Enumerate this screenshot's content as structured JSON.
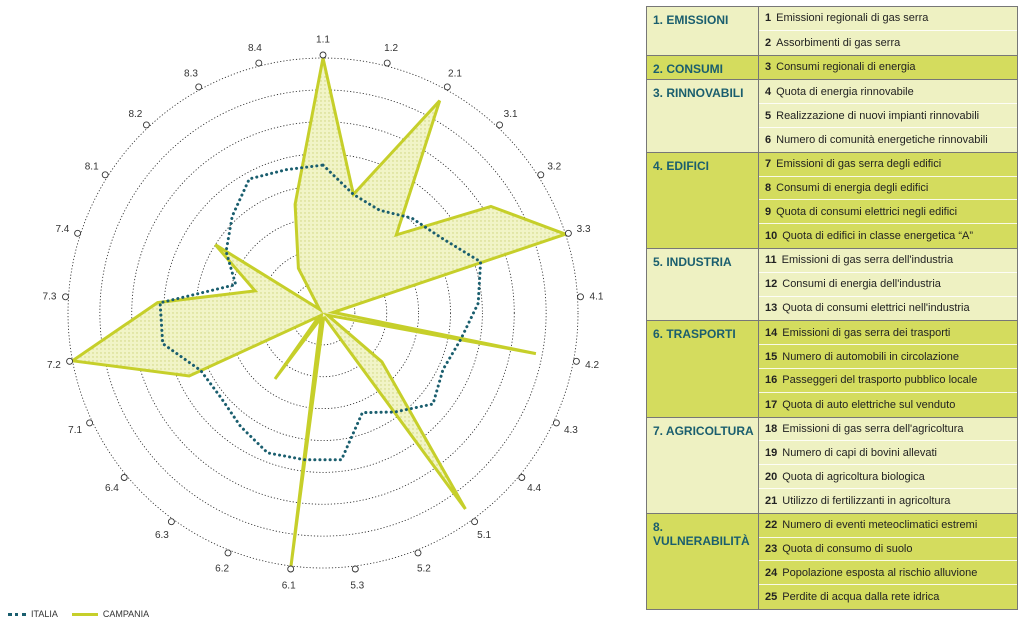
{
  "chart_data": {
    "type": "radar",
    "axes": [
      "1.1",
      "1.2",
      "2.1",
      "3.1",
      "3.2",
      "3.3",
      "4.1",
      "4.2",
      "4.3",
      "4.4",
      "5.1",
      "5.2",
      "5.3",
      "6.1",
      "6.2",
      "6.3",
      "6.4",
      "7.1",
      "7.2",
      "7.3",
      "7.4",
      "8.1",
      "8.2",
      "8.3",
      "8.4"
    ],
    "rings": 8,
    "series": [
      {
        "name": "ITALIA",
        "style": "dotted",
        "color": "#1a5e6e",
        "values": [
          0.58,
          0.48,
          0.46,
          0.51,
          0.55,
          0.65,
          0.61,
          0.55,
          0.52,
          0.56,
          0.48,
          0.42,
          0.58,
          0.58,
          0.59,
          0.55,
          0.52,
          0.53,
          0.64,
          0.64,
          0.36,
          0.45,
          0.52,
          0.6,
          0.58
        ]
      },
      {
        "name": "CAMPANIA",
        "style": "solid",
        "color": "#c6cf2a",
        "values": [
          1.0,
          0.48,
          0.95,
          0.42,
          0.78,
          1.0,
          0.04,
          0.85,
          0.02,
          0.3,
          0.95,
          0.02,
          0.02,
          1.0,
          0.02,
          0.32,
          0.02,
          0.58,
          1.0,
          0.65,
          0.28,
          0.5,
          0.02,
          0.2,
          0.44
        ]
      }
    ]
  },
  "legend": {
    "italia": "ITALIA",
    "campania": "CAMPANIA"
  },
  "table": [
    {
      "title": "1. EMISSIONI",
      "shade": "light",
      "rows": [
        {
          "n": "1",
          "text": "Emissioni regionali di gas serra"
        },
        {
          "n": "2",
          "text": "Assorbimenti di gas serra"
        }
      ]
    },
    {
      "title": "2. CONSUMI",
      "shade": "dark",
      "rows": [
        {
          "n": "3",
          "text": "Consumi regionali di energia"
        }
      ]
    },
    {
      "title": "3. RINNOVABILI",
      "shade": "light",
      "rows": [
        {
          "n": "4",
          "text": "Quota di energia rinnovabile"
        },
        {
          "n": "5",
          "text": "Realizzazione di nuovi impianti rinnovabili"
        },
        {
          "n": "6",
          "text": "Numero di comunità energetiche rinnovabili"
        }
      ]
    },
    {
      "title": "4. EDIFICI",
      "shade": "dark",
      "rows": [
        {
          "n": "7",
          "text": "Emissioni di gas serra degli edifici"
        },
        {
          "n": "8",
          "text": "Consumi di energia degli edifici"
        },
        {
          "n": "9",
          "text": "Quota di consumi elettrici negli edifici"
        },
        {
          "n": "10",
          "text": "Quota di edifici in classe energetica “A”"
        }
      ]
    },
    {
      "title": "5. INDUSTRIA",
      "shade": "light",
      "rows": [
        {
          "n": "11",
          "text": "Emissioni di gas serra dell'industria"
        },
        {
          "n": "12",
          "text": "Consumi di energia dell'industria"
        },
        {
          "n": "13",
          "text": "Quota di consumi elettrici nell'industria"
        }
      ]
    },
    {
      "title": "6. TRASPORTI",
      "shade": "dark",
      "rows": [
        {
          "n": "14",
          "text": "Emissioni di gas serra dei trasporti"
        },
        {
          "n": "15",
          "text": "Numero di automobili in circolazione"
        },
        {
          "n": "16",
          "text": "Passeggeri del trasporto pubblico locale"
        },
        {
          "n": "17",
          "text": "Quota di auto elettriche sul venduto"
        }
      ]
    },
    {
      "title": "7. AGRICOLTURA",
      "shade": "light",
      "rows": [
        {
          "n": "18",
          "text": "Emissioni di gas serra dell'agricoltura"
        },
        {
          "n": "19",
          "text": "Numero di capi di bovini allevati"
        },
        {
          "n": "20",
          "text": "Quota di agricoltura biologica"
        },
        {
          "n": "21",
          "text": "Utilizzo di fertilizzanti in agricoltura"
        }
      ]
    },
    {
      "title": "8. VULNERABILITÀ",
      "shade": "dark",
      "rows": [
        {
          "n": "22",
          "text": "Numero di eventi meteoclimatici estremi"
        },
        {
          "n": "23",
          "text": "Quota di consumo di suolo"
        },
        {
          "n": "24",
          "text": "Popolazione esposta al rischio alluvione"
        },
        {
          "n": "25",
          "text": "Perdite di acqua dalla rete idrica"
        }
      ]
    }
  ]
}
